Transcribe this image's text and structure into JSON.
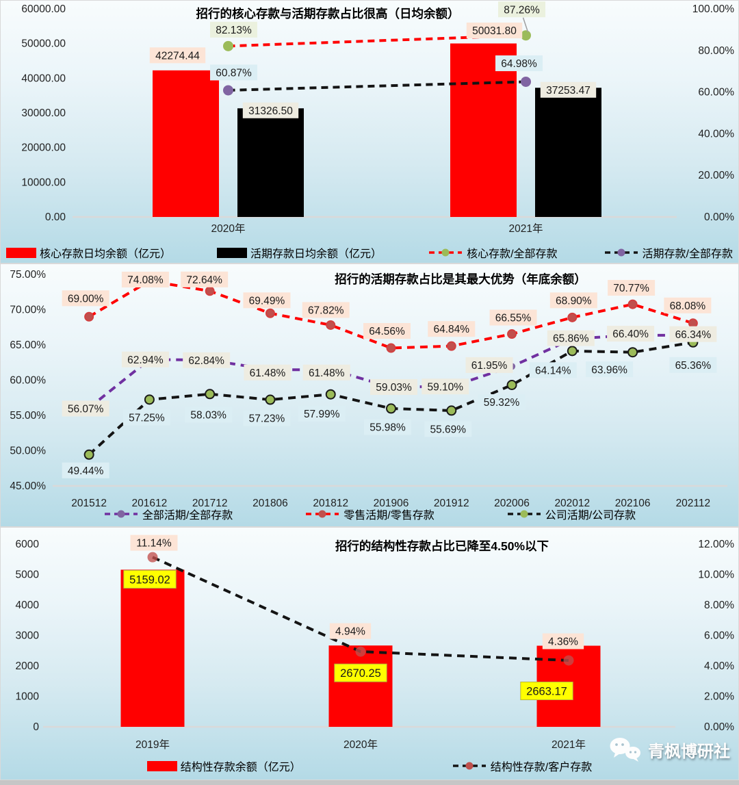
{
  "watermark": {
    "text": "青枫博研社",
    "icon": "wechat-icon"
  },
  "chart_data": [
    {
      "id": "core-vs-demand-deposits",
      "type": "bar+line",
      "title": "招行的核心存款与活期存款占比很高（日均余额）",
      "categories": [
        "2020年",
        "2021年"
      ],
      "left_axis": {
        "min": 0,
        "max": 60000,
        "step": 10000,
        "format": "fixed2"
      },
      "right_axis": {
        "min": 0,
        "max": 100,
        "step": 20,
        "format": "pct2"
      },
      "grid": "off",
      "legend_position": "bottom",
      "bar_series": [
        {
          "name": "核心存款日均余额（亿元）",
          "color": "#ff0000",
          "label_bg": "#fce4d6",
          "values": [
            42274.44,
            50031.8
          ]
        },
        {
          "name": "活期存款日均余额（亿元）",
          "color": "#000000",
          "label_bg": "#eeece1",
          "values": [
            31326.5,
            37253.47
          ]
        }
      ],
      "line_series": [
        {
          "name": "核心存款/全部存款",
          "line_color": "#ff0000",
          "marker_color": "#9bbb59",
          "label_bg": "#ebf1de",
          "values": [
            82.13,
            87.26
          ]
        },
        {
          "name": "活期存款/全部存款",
          "line_color": "#141414",
          "marker_color": "#8064a2",
          "label_bg": "#dbeef4",
          "values": [
            60.87,
            64.98
          ]
        }
      ]
    },
    {
      "id": "demand-deposit-ratio",
      "type": "line",
      "title": "招行的活期存款占比是其最大优势（年底余额）",
      "categories": [
        "201512",
        "201612",
        "201712",
        "201806",
        "201812",
        "201906",
        "201912",
        "202006",
        "202012",
        "202106",
        "202112"
      ],
      "left_axis": {
        "min": 45,
        "max": 75,
        "step": 5,
        "format": "pct2"
      },
      "grid": "off",
      "legend_position": "bottom",
      "bar_series": [],
      "line_series": [
        {
          "name": "全部活期/全部存款",
          "line_color": "#7030a0",
          "marker_color": "#8064a2",
          "label_bg": "#eeece1",
          "values": [
            56.07,
            62.94,
            62.84,
            61.48,
            61.48,
            59.03,
            59.1,
            61.95,
            65.86,
            66.4,
            66.34
          ]
        },
        {
          "name": "零售活期/零售存款",
          "line_color": "#ff0000",
          "marker_color": "#c0504d",
          "label_bg": "#fce4d6",
          "values": [
            69.0,
            74.08,
            72.64,
            69.49,
            67.82,
            64.56,
            64.84,
            66.55,
            68.9,
            70.77,
            68.08
          ]
        },
        {
          "name": "公司活期/公司存款",
          "line_color": "#141414",
          "marker_color": "#9bbb59",
          "label_bg": "#dbeef4",
          "values": [
            49.44,
            57.25,
            58.03,
            57.23,
            57.99,
            55.98,
            55.69,
            59.32,
            64.14,
            63.96,
            65.36
          ]
        }
      ]
    },
    {
      "id": "structured-deposits",
      "type": "bar+line",
      "title": "招行的结构性存款占比已降至4.50%以下",
      "categories": [
        "2019年",
        "2020年",
        "2021年"
      ],
      "left_axis": {
        "min": 0,
        "max": 6000,
        "step": 1000,
        "format": "int"
      },
      "right_axis": {
        "min": 0,
        "max": 12,
        "step": 2,
        "format": "pct2"
      },
      "grid": "off",
      "legend_position": "bottom",
      "bar_series": [
        {
          "name": "结构性存款余额（亿元）",
          "color": "#ff0000",
          "label_bg": "#ffff00",
          "label_stroke": "#b5b53a",
          "values": [
            5159.02,
            2670.25,
            2663.17
          ]
        }
      ],
      "line_series": [
        {
          "name": "结构性存款/客户存款",
          "line_color": "#141414",
          "marker_color": "#c0504d",
          "label_bg": "#fce4d6",
          "values": [
            11.14,
            4.94,
            4.36
          ]
        }
      ]
    }
  ]
}
